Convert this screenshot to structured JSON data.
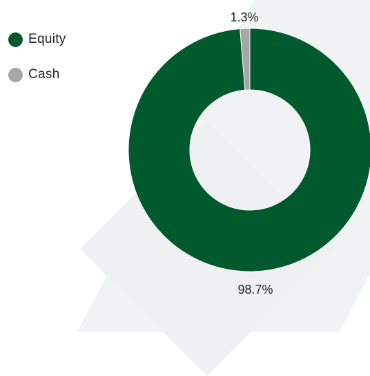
{
  "chart_data": {
    "type": "pie",
    "categories": [
      "Equity",
      "Cash"
    ],
    "values": [
      98.7,
      1.3
    ],
    "data_labels": [
      "98.7%",
      "1.3%"
    ],
    "colors": [
      "#005a2e",
      "#a6a6a6"
    ],
    "donut": true,
    "legend_placement": "left"
  }
}
